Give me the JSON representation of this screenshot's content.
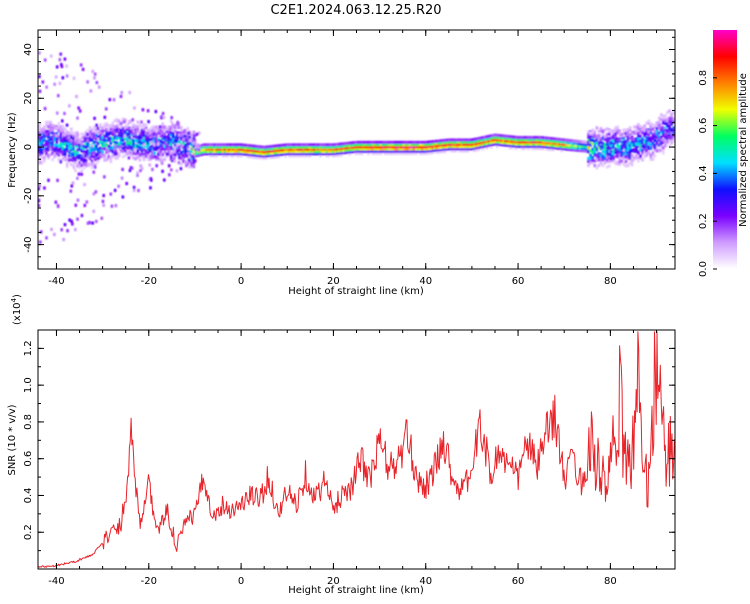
{
  "title": "C2E1.2024.063.12.25.R20",
  "chart_data": [
    {
      "type": "heatmap",
      "xlabel": "Height of straight line (km)",
      "ylabel": "Frequency (Hz)",
      "xlim": [
        -44,
        94
      ],
      "ylim": [
        -50,
        48
      ],
      "xticks": [
        -40,
        -20,
        0,
        20,
        40,
        60,
        80
      ],
      "yticks": [
        -40,
        -20,
        0,
        20,
        40
      ],
      "colorbar": {
        "label": "Normalized spectral amplitude",
        "range": [
          0,
          1
        ],
        "ticks": [
          "0.0",
          "0.2",
          "0.4",
          "0.6",
          "0.8"
        ],
        "colormap": [
          "#ffffff",
          "#cf9bff",
          "#7a00ff",
          "#1010ff",
          "#00e0ff",
          "#00ff60",
          "#f0ff00",
          "#ff8000",
          "#ff0000",
          "#ff00c8"
        ]
      },
      "ridge": {
        "x": [
          -44,
          -40,
          -35,
          -30,
          -25,
          -20,
          -15,
          -12,
          -10,
          -8,
          -5,
          0,
          5,
          10,
          15,
          20,
          25,
          30,
          35,
          40,
          45,
          50,
          55,
          60,
          65,
          70,
          75,
          80,
          85,
          90,
          93
        ],
        "y": [
          2,
          3,
          -2,
          2,
          4,
          1,
          3,
          0,
          -2,
          -1,
          -1,
          -1,
          -2,
          -1,
          -1,
          -1,
          0,
          0,
          0,
          0,
          1,
          1,
          3,
          2,
          2,
          1,
          0,
          0,
          1,
          4,
          8
        ],
        "peak_amplitude": [
          0.35,
          0.35,
          0.38,
          0.4,
          0.4,
          0.38,
          0.35,
          0.4,
          0.6,
          0.8,
          0.85,
          0.9,
          0.9,
          0.9,
          0.9,
          0.85,
          0.9,
          0.95,
          0.95,
          0.95,
          0.9,
          0.9,
          0.85,
          0.9,
          0.9,
          0.8,
          0.5,
          0.4,
          0.35,
          0.35,
          0.3
        ]
      }
    },
    {
      "type": "line",
      "xlabel": "Height of straight line (km)",
      "ylabel": "SNR (10 * v/v)",
      "scale_label": "(x10",
      "scale_exponent": "4",
      "scale_suffix": ")",
      "xlim": [
        -44,
        94
      ],
      "ylim": [
        0,
        1.3
      ],
      "xticks": [
        -40,
        -20,
        0,
        20,
        40,
        60,
        80
      ],
      "yticks": [
        "0.2",
        "0.4",
        "0.6",
        "0.8",
        "1.0",
        "1.2"
      ],
      "series": [
        {
          "color": "#e8242a",
          "x": [
            -44,
            -40,
            -36,
            -32,
            -30,
            -28,
            -26,
            -24.5,
            -24,
            -22,
            -20,
            -18,
            -16,
            -14,
            -12,
            -10,
            -8,
            -6,
            -4,
            -2,
            0,
            2,
            4,
            6,
            8,
            10,
            12,
            14,
            16,
            18,
            20,
            22,
            24,
            26,
            28,
            30,
            32,
            34,
            36,
            38,
            40,
            42,
            44,
            46,
            48,
            50,
            52,
            54,
            56,
            58,
            60,
            62,
            64,
            66,
            68,
            70,
            72,
            74,
            76,
            78,
            80,
            82,
            84,
            86,
            88,
            90,
            92,
            94
          ],
          "y": [
            0.01,
            0.02,
            0.04,
            0.08,
            0.15,
            0.2,
            0.25,
            0.5,
            0.8,
            0.25,
            0.45,
            0.2,
            0.32,
            0.12,
            0.25,
            0.3,
            0.5,
            0.28,
            0.35,
            0.32,
            0.35,
            0.4,
            0.38,
            0.5,
            0.3,
            0.42,
            0.35,
            0.52,
            0.38,
            0.48,
            0.32,
            0.42,
            0.45,
            0.6,
            0.48,
            0.7,
            0.55,
            0.58,
            0.72,
            0.5,
            0.45,
            0.55,
            0.7,
            0.48,
            0.42,
            0.55,
            0.8,
            0.5,
            0.65,
            0.55,
            0.5,
            0.7,
            0.55,
            0.72,
            0.85,
            0.48,
            0.6,
            0.45,
            0.7,
            0.45,
            0.52,
            0.9,
            0.5,
            1.0,
            0.45,
            1.2,
            0.55,
            0.75
          ]
        }
      ]
    }
  ]
}
